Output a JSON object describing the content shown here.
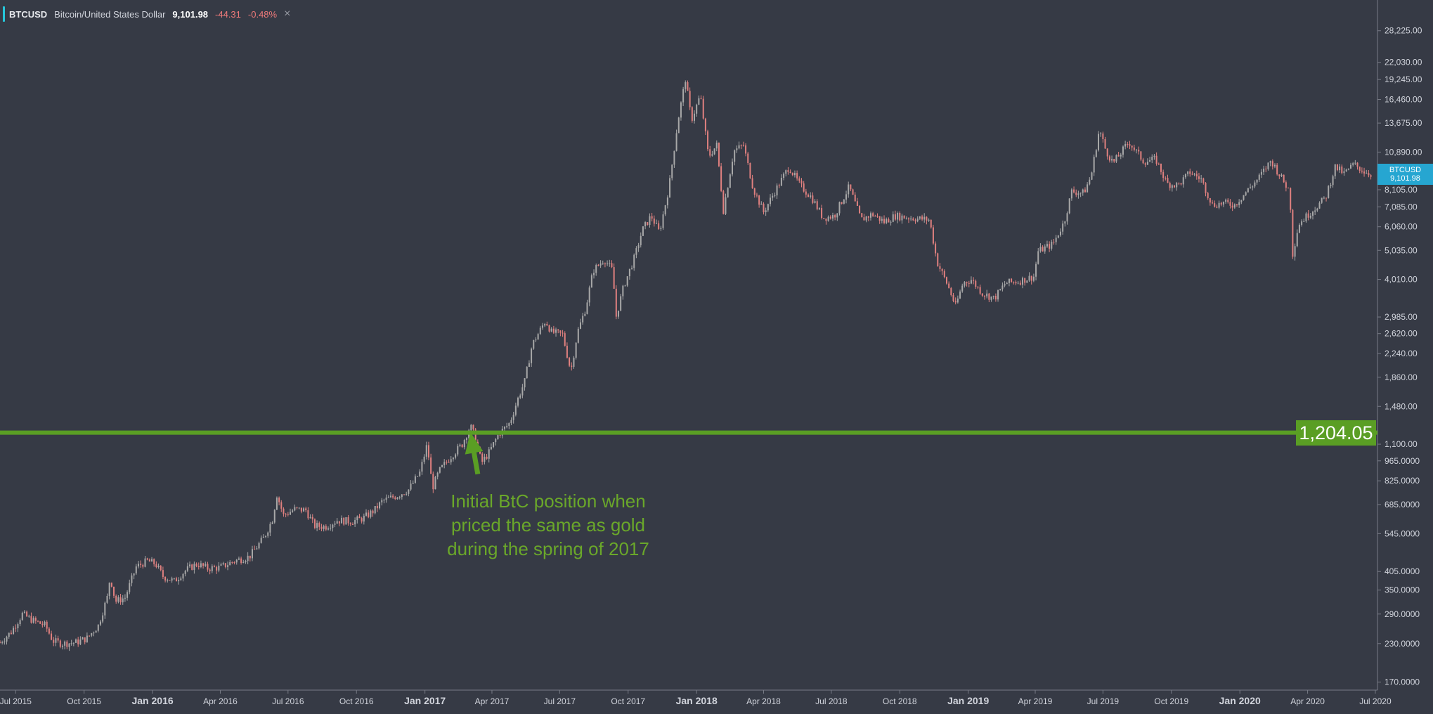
{
  "legend": {
    "symbol": "BTCUSD",
    "description": "Bitcoin/United States Dollar",
    "last": "9,101.98",
    "change": "-44.31",
    "change_pct": "-0.48%",
    "close_glyph": "×"
  },
  "annotation": {
    "lines": [
      "Initial BtC position when",
      "priced the same as gold",
      "during the spring of 2017"
    ],
    "color": "#6aa72a"
  },
  "level_label": "1,204.05",
  "last_badge": {
    "symbol": "BTCUSD",
    "price": "9,101.98"
  },
  "colors": {
    "background": "#363a45",
    "up": "#a8a8a8",
    "down": "#e0807f",
    "level": "#5a9e24",
    "accent": "#26a6d1"
  },
  "chart_data": {
    "type": "line",
    "title": "",
    "scale": "log",
    "ylim": [
      165,
      34000
    ],
    "xlim": [
      "2015-06-10",
      "2020-07-02"
    ],
    "x_ticks": [
      {
        "label": "Jul 2015",
        "date": "2015-07-01",
        "bold": false
      },
      {
        "label": "Oct 2015",
        "date": "2015-10-01",
        "bold": false
      },
      {
        "label": "Jan 2016",
        "date": "2016-01-01",
        "bold": true
      },
      {
        "label": "Apr 2016",
        "date": "2016-04-01",
        "bold": false
      },
      {
        "label": "Jul 2016",
        "date": "2016-07-01",
        "bold": false
      },
      {
        "label": "Oct 2016",
        "date": "2016-10-01",
        "bold": false
      },
      {
        "label": "Jan 2017",
        "date": "2017-01-01",
        "bold": true
      },
      {
        "label": "Apr 2017",
        "date": "2017-04-01",
        "bold": false
      },
      {
        "label": "Jul 2017",
        "date": "2017-07-01",
        "bold": false
      },
      {
        "label": "Oct 2017",
        "date": "2017-10-01",
        "bold": false
      },
      {
        "label": "Jan 2018",
        "date": "2018-01-01",
        "bold": true
      },
      {
        "label": "Apr 2018",
        "date": "2018-04-01",
        "bold": false
      },
      {
        "label": "Jul 2018",
        "date": "2018-07-01",
        "bold": false
      },
      {
        "label": "Oct 2018",
        "date": "2018-10-01",
        "bold": false
      },
      {
        "label": "Jan 2019",
        "date": "2019-01-01",
        "bold": true
      },
      {
        "label": "Apr 2019",
        "date": "2019-04-01",
        "bold": false
      },
      {
        "label": "Jul 2019",
        "date": "2019-07-01",
        "bold": false
      },
      {
        "label": "Oct 2019",
        "date": "2019-10-01",
        "bold": false
      },
      {
        "label": "Jan 2020",
        "date": "2020-01-01",
        "bold": true
      },
      {
        "label": "Apr 2020",
        "date": "2020-04-01",
        "bold": false
      },
      {
        "label": "Jul 2020",
        "date": "2020-07-01",
        "bold": false
      }
    ],
    "y_ticks": [
      {
        "label": "28,225.00",
        "value": 28225
      },
      {
        "label": "22,030.00",
        "value": 22030
      },
      {
        "label": "19,245.00",
        "value": 19245
      },
      {
        "label": "16,460.00",
        "value": 16460
      },
      {
        "label": "13,675.00",
        "value": 13675
      },
      {
        "label": "10,890.00",
        "value": 10890
      },
      {
        "label": "8,105.00",
        "value": 8105
      },
      {
        "label": "7,085.00",
        "value": 7085
      },
      {
        "label": "6,060.00",
        "value": 6060
      },
      {
        "label": "5,035.00",
        "value": 5035
      },
      {
        "label": "4,010.00",
        "value": 4010
      },
      {
        "label": "2,985.00",
        "value": 2985
      },
      {
        "label": "2,620.00",
        "value": 2620
      },
      {
        "label": "2,240.00",
        "value": 2240
      },
      {
        "label": "1,860.00",
        "value": 1860
      },
      {
        "label": "1,480.00",
        "value": 1480
      },
      {
        "label": "1,100.00",
        "value": 1100
      },
      {
        "label": "965.0000",
        "value": 965
      },
      {
        "label": "825.0000",
        "value": 825
      },
      {
        "label": "685.0000",
        "value": 685
      },
      {
        "label": "545.0000",
        "value": 545
      },
      {
        "label": "405.0000",
        "value": 405
      },
      {
        "label": "350.0000",
        "value": 350
      },
      {
        "label": "290.0000",
        "value": 290
      },
      {
        "label": "230.0000",
        "value": 230
      },
      {
        "label": "170.0000",
        "value": 170
      }
    ],
    "horizontal_line": {
      "value": 1204.05,
      "label": "1,204.05"
    },
    "annotation_arrow": {
      "tip": {
        "date": "2017-03-03",
        "value": 1210
      },
      "tail": {
        "date": "2017-03-13",
        "value": 870
      }
    },
    "series": [
      {
        "name": "BTCUSD",
        "points": [
          [
            "2015-06-10",
            232
          ],
          [
            "2015-06-25",
            252
          ],
          [
            "2015-07-10",
            290
          ],
          [
            "2015-07-25",
            275
          ],
          [
            "2015-08-10",
            265
          ],
          [
            "2015-08-20",
            235
          ],
          [
            "2015-09-01",
            230
          ],
          [
            "2015-09-20",
            232
          ],
          [
            "2015-10-05",
            240
          ],
          [
            "2015-10-20",
            265
          ],
          [
            "2015-11-01",
            330
          ],
          [
            "2015-11-05",
            390
          ],
          [
            "2015-11-12",
            320
          ],
          [
            "2015-11-25",
            330
          ],
          [
            "2015-12-10",
            420
          ],
          [
            "2015-12-25",
            440
          ],
          [
            "2016-01-05",
            430
          ],
          [
            "2016-01-15",
            390
          ],
          [
            "2016-01-30",
            375
          ],
          [
            "2016-02-15",
            410
          ],
          [
            "2016-03-01",
            430
          ],
          [
            "2016-03-15",
            415
          ],
          [
            "2016-04-01",
            418
          ],
          [
            "2016-04-20",
            440
          ],
          [
            "2016-05-10",
            455
          ],
          [
            "2016-05-30",
            530
          ],
          [
            "2016-06-10",
            610
          ],
          [
            "2016-06-16",
            740
          ],
          [
            "2016-06-25",
            630
          ],
          [
            "2016-07-10",
            660
          ],
          [
            "2016-07-25",
            655
          ],
          [
            "2016-08-05",
            580
          ],
          [
            "2016-08-20",
            575
          ],
          [
            "2016-09-05",
            605
          ],
          [
            "2016-09-25",
            600
          ],
          [
            "2016-10-10",
            615
          ],
          [
            "2016-10-25",
            655
          ],
          [
            "2016-11-05",
            705
          ],
          [
            "2016-11-25",
            735
          ],
          [
            "2016-12-10",
            770
          ],
          [
            "2016-12-25",
            880
          ],
          [
            "2017-01-04",
            1100
          ],
          [
            "2017-01-11",
            780
          ],
          [
            "2017-01-20",
            890
          ],
          [
            "2017-02-05",
            1000
          ],
          [
            "2017-02-20",
            1100
          ],
          [
            "2017-03-03",
            1270
          ],
          [
            "2017-03-10",
            1150
          ],
          [
            "2017-03-18",
            950
          ],
          [
            "2017-03-28",
            1030
          ],
          [
            "2017-04-10",
            1190
          ],
          [
            "2017-04-25",
            1300
          ],
          [
            "2017-05-05",
            1550
          ],
          [
            "2017-05-15",
            1800
          ],
          [
            "2017-05-25",
            2400
          ],
          [
            "2017-06-05",
            2700
          ],
          [
            "2017-06-12",
            2900
          ],
          [
            "2017-06-20",
            2650
          ],
          [
            "2017-07-05",
            2600
          ],
          [
            "2017-07-16",
            1950
          ],
          [
            "2017-07-25",
            2650
          ],
          [
            "2017-08-05",
            3200
          ],
          [
            "2017-08-15",
            4300
          ],
          [
            "2017-08-30",
            4700
          ],
          [
            "2017-09-10",
            4300
          ],
          [
            "2017-09-15",
            3000
          ],
          [
            "2017-09-25",
            3800
          ],
          [
            "2017-10-10",
            4800
          ],
          [
            "2017-10-20",
            5900
          ],
          [
            "2017-11-01",
            6600
          ],
          [
            "2017-11-12",
            5800
          ],
          [
            "2017-11-25",
            8300
          ],
          [
            "2017-12-07",
            14000
          ],
          [
            "2017-12-17",
            19300
          ],
          [
            "2017-12-25",
            14000
          ],
          [
            "2018-01-06",
            17000
          ],
          [
            "2018-01-17",
            10500
          ],
          [
            "2018-01-28",
            11500
          ],
          [
            "2018-02-06",
            6900
          ],
          [
            "2018-02-20",
            11000
          ],
          [
            "2018-03-05",
            11500
          ],
          [
            "2018-03-18",
            8200
          ],
          [
            "2018-04-01",
            6800
          ],
          [
            "2018-04-15",
            7900
          ],
          [
            "2018-05-05",
            9700
          ],
          [
            "2018-05-20",
            8400
          ],
          [
            "2018-06-05",
            7600
          ],
          [
            "2018-06-20",
            6500
          ],
          [
            "2018-07-05",
            6600
          ],
          [
            "2018-07-25",
            8300
          ],
          [
            "2018-08-10",
            6400
          ],
          [
            "2018-08-25",
            6700
          ],
          [
            "2018-09-10",
            6300
          ],
          [
            "2018-09-25",
            6600
          ],
          [
            "2018-10-15",
            6500
          ],
          [
            "2018-11-10",
            6400
          ],
          [
            "2018-11-20",
            4600
          ],
          [
            "2018-12-05",
            3800
          ],
          [
            "2018-12-15",
            3250
          ],
          [
            "2018-12-25",
            3900
          ],
          [
            "2019-01-05",
            4000
          ],
          [
            "2019-01-20",
            3600
          ],
          [
            "2019-02-05",
            3450
          ],
          [
            "2019-02-20",
            3900
          ],
          [
            "2019-03-10",
            3950
          ],
          [
            "2019-03-30",
            4100
          ],
          [
            "2019-04-05",
            5000
          ],
          [
            "2019-04-25",
            5300
          ],
          [
            "2019-05-10",
            6300
          ],
          [
            "2019-05-20",
            8000
          ],
          [
            "2019-06-05",
            7900
          ],
          [
            "2019-06-15",
            9000
          ],
          [
            "2019-06-26",
            13000
          ],
          [
            "2019-07-05",
            11000
          ],
          [
            "2019-07-15",
            10000
          ],
          [
            "2019-08-05",
            11800
          ],
          [
            "2019-08-25",
            10100
          ],
          [
            "2019-09-10",
            10300
          ],
          [
            "2019-09-25",
            8500
          ],
          [
            "2019-10-10",
            8400
          ],
          [
            "2019-10-26",
            9300
          ],
          [
            "2019-11-10",
            8800
          ],
          [
            "2019-11-25",
            7200
          ],
          [
            "2019-12-10",
            7300
          ],
          [
            "2019-12-25",
            7200
          ],
          [
            "2020-01-10",
            8000
          ],
          [
            "2020-01-25",
            8800
          ],
          [
            "2020-02-12",
            10200
          ],
          [
            "2020-02-28",
            8700
          ],
          [
            "2020-03-08",
            8000
          ],
          [
            "2020-03-12",
            4900
          ],
          [
            "2020-03-20",
            6200
          ],
          [
            "2020-04-05",
            6800
          ],
          [
            "2020-04-25",
            7600
          ],
          [
            "2020-05-08",
            9700
          ],
          [
            "2020-05-20",
            9200
          ],
          [
            "2020-06-02",
            9900
          ],
          [
            "2020-06-15",
            9400
          ],
          [
            "2020-06-26",
            9150
          ]
        ]
      }
    ]
  }
}
